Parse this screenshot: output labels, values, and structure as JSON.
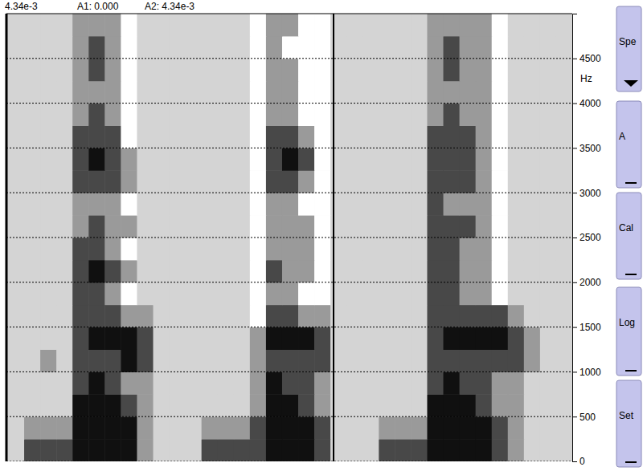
{
  "header": {
    "readout": "4.34e-3",
    "a1": "A1: 0.000",
    "a2": "A2: 4.34e-3"
  },
  "buttons": [
    "Spe",
    "A",
    "Cal",
    "Log",
    "Set"
  ],
  "chart_data": {
    "type": "heatmap",
    "ylabel": "Hz",
    "ylim": [
      0,
      5000
    ],
    "yticks": [
      0,
      500,
      1000,
      1500,
      2000,
      2500,
      3000,
      3500,
      4000,
      4500
    ],
    "grid": true,
    "tick_labels": "y",
    "bins": [
      0,
      250,
      500,
      750,
      1000,
      1250,
      1500,
      1750,
      2000,
      2250,
      2500,
      2750,
      3000,
      3250,
      3500,
      3750,
      4000,
      4250,
      4500,
      4750,
      5000
    ],
    "cells": [
      [
        0,
        3,
        3,
        3,
        4,
        4,
        4,
        4,
        2,
        0,
        0,
        0,
        3,
        3,
        3,
        3,
        4,
        4,
        4,
        3,
        0,
        0,
        0,
        3,
        3,
        3,
        4,
        4,
        4,
        4,
        3,
        2,
        0,
        0,
        0
      ],
      [
        0,
        2,
        2,
        2,
        4,
        4,
        4,
        4,
        2,
        0,
        0,
        0,
        2,
        2,
        2,
        3,
        4,
        4,
        4,
        3,
        0,
        0,
        0,
        2,
        2,
        2,
        4,
        4,
        4,
        4,
        3,
        2,
        0,
        0,
        0
      ],
      [
        0,
        0,
        0,
        0,
        4,
        4,
        4,
        3,
        2,
        0,
        0,
        0,
        0,
        0,
        0,
        2,
        4,
        4,
        3,
        2,
        0,
        0,
        0,
        0,
        0,
        0,
        4,
        4,
        4,
        3,
        2,
        2,
        0,
        0,
        0
      ],
      [
        0,
        0,
        0,
        0,
        3,
        4,
        3,
        2,
        2,
        0,
        0,
        0,
        0,
        0,
        0,
        2,
        4,
        3,
        3,
        2,
        0,
        0,
        0,
        0,
        0,
        0,
        3,
        4,
        3,
        3,
        2,
        2,
        0,
        0,
        0
      ],
      [
        0,
        0,
        2,
        0,
        3,
        3,
        3,
        4,
        3,
        0,
        0,
        0,
        0,
        0,
        0,
        2,
        3,
        3,
        3,
        3,
        0,
        0,
        0,
        0,
        0,
        0,
        3,
        3,
        3,
        3,
        3,
        3,
        2,
        0,
        0
      ],
      [
        0,
        0,
        0,
        0,
        3,
        4,
        4,
        4,
        3,
        0,
        0,
        0,
        0,
        0,
        0,
        2,
        4,
        4,
        4,
        3,
        0,
        0,
        0,
        0,
        0,
        0,
        3,
        4,
        4,
        4,
        4,
        3,
        2,
        0,
        0
      ],
      [
        0,
        0,
        0,
        0,
        3,
        3,
        3,
        2,
        2,
        0,
        0,
        0,
        0,
        0,
        0,
        1,
        3,
        3,
        2,
        2,
        0,
        0,
        0,
        0,
        0,
        0,
        3,
        3,
        3,
        3,
        3,
        2,
        0,
        0,
        0
      ],
      [
        0,
        0,
        0,
        0,
        3,
        3,
        2,
        1,
        0,
        0,
        0,
        0,
        0,
        0,
        0,
        1,
        2,
        2,
        1,
        1,
        0,
        0,
        0,
        0,
        0,
        0,
        3,
        3,
        2,
        2,
        1,
        0,
        0,
        0,
        0
      ],
      [
        0,
        0,
        0,
        0,
        3,
        4,
        3,
        2,
        0,
        0,
        0,
        0,
        0,
        0,
        0,
        1,
        3,
        2,
        2,
        1,
        0,
        0,
        0,
        0,
        0,
        0,
        3,
        3,
        2,
        2,
        1,
        0,
        0,
        0,
        0
      ],
      [
        0,
        0,
        0,
        0,
        3,
        3,
        2,
        1,
        0,
        0,
        0,
        0,
        0,
        0,
        0,
        1,
        2,
        2,
        2,
        1,
        0,
        0,
        0,
        0,
        0,
        0,
        3,
        3,
        2,
        2,
        1,
        0,
        0,
        0,
        0
      ],
      [
        0,
        0,
        0,
        0,
        2,
        3,
        2,
        2,
        0,
        0,
        0,
        0,
        0,
        0,
        0,
        1,
        2,
        2,
        2,
        1,
        0,
        0,
        0,
        0,
        0,
        0,
        3,
        3,
        3,
        2,
        1,
        0,
        0,
        0,
        0
      ],
      [
        0,
        0,
        0,
        0,
        2,
        2,
        2,
        1,
        0,
        0,
        0,
        0,
        0,
        0,
        0,
        1,
        2,
        2,
        1,
        1,
        0,
        0,
        0,
        0,
        0,
        0,
        3,
        2,
        2,
        2,
        1,
        0,
        0,
        0,
        0
      ],
      [
        0,
        0,
        0,
        0,
        3,
        3,
        3,
        2,
        0,
        0,
        0,
        0,
        0,
        0,
        0,
        1,
        3,
        3,
        2,
        1,
        0,
        0,
        0,
        0,
        0,
        0,
        3,
        3,
        3,
        2,
        1,
        0,
        0,
        0,
        0
      ],
      [
        0,
        0,
        0,
        0,
        3,
        4,
        3,
        2,
        0,
        0,
        0,
        0,
        0,
        0,
        0,
        1,
        3,
        4,
        3,
        1,
        0,
        0,
        0,
        0,
        0,
        0,
        3,
        3,
        3,
        2,
        1,
        0,
        0,
        0,
        0
      ],
      [
        0,
        0,
        0,
        0,
        3,
        3,
        3,
        1,
        0,
        0,
        0,
        0,
        0,
        0,
        0,
        1,
        3,
        3,
        2,
        1,
        0,
        0,
        0,
        0,
        0,
        0,
        3,
        3,
        3,
        2,
        1,
        0,
        0,
        0,
        0
      ],
      [
        0,
        0,
        0,
        0,
        2,
        3,
        2,
        1,
        0,
        0,
        0,
        0,
        0,
        0,
        0,
        1,
        2,
        2,
        1,
        1,
        0,
        0,
        0,
        0,
        0,
        0,
        2,
        3,
        2,
        2,
        1,
        0,
        0,
        0,
        0
      ],
      [
        0,
        0,
        0,
        0,
        2,
        2,
        2,
        1,
        0,
        0,
        0,
        0,
        0,
        0,
        0,
        1,
        2,
        2,
        1,
        1,
        0,
        0,
        0,
        0,
        0,
        0,
        2,
        2,
        2,
        2,
        1,
        0,
        0,
        0,
        0
      ],
      [
        0,
        0,
        0,
        0,
        2,
        3,
        2,
        1,
        0,
        0,
        0,
        0,
        0,
        0,
        0,
        1,
        2,
        2,
        1,
        1,
        0,
        0,
        0,
        0,
        0,
        0,
        2,
        3,
        2,
        2,
        1,
        0,
        0,
        0,
        0
      ],
      [
        0,
        0,
        0,
        0,
        2,
        3,
        2,
        1,
        0,
        0,
        0,
        0,
        0,
        0,
        0,
        1,
        2,
        1,
        1,
        1,
        0,
        0,
        0,
        0,
        0,
        0,
        2,
        3,
        2,
        2,
        1,
        0,
        0,
        0,
        0
      ],
      [
        0,
        0,
        0,
        0,
        2,
        2,
        2,
        1,
        0,
        0,
        0,
        0,
        0,
        0,
        0,
        1,
        2,
        2,
        1,
        1,
        0,
        0,
        0,
        0,
        0,
        0,
        2,
        2,
        2,
        2,
        1,
        0,
        0,
        0,
        0
      ]
    ]
  }
}
